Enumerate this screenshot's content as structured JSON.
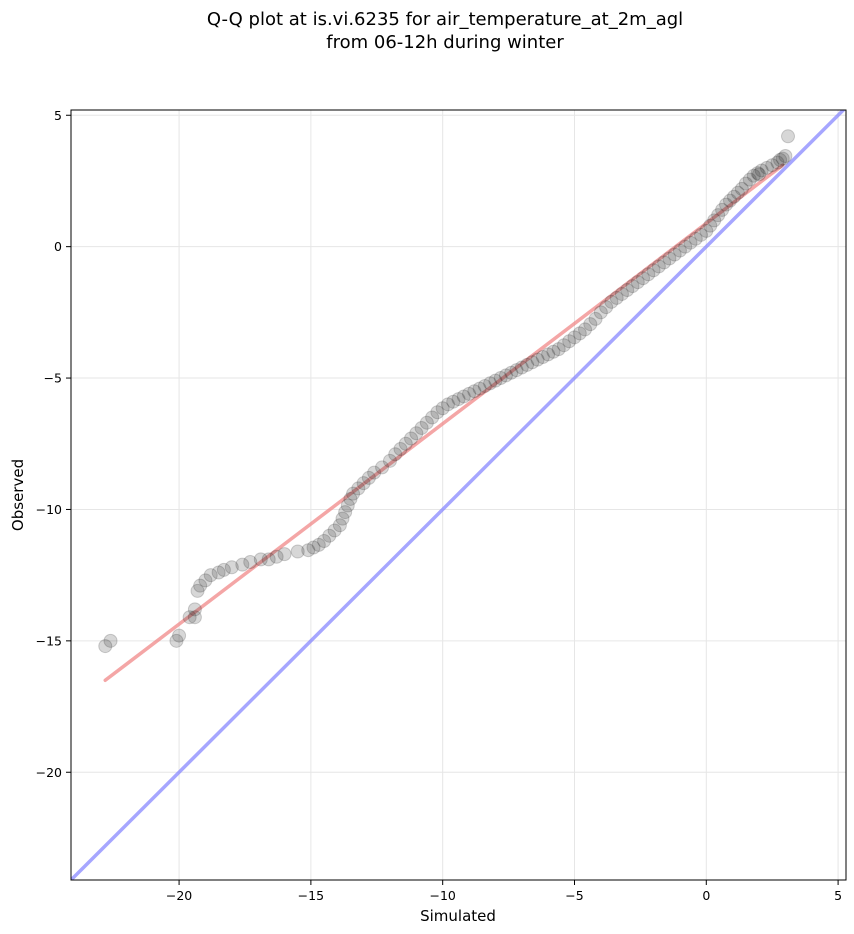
{
  "chart_data": {
    "type": "scatter",
    "title": [
      "Q-Q plot at is.vi.6235 for air_temperature_at_2m_agl",
      "from 06-12h during winter"
    ],
    "xlabel": "Simulated",
    "ylabel": "Observed",
    "xlim": [
      -24.1,
      5.3
    ],
    "ylim": [
      -24.1,
      5.2
    ],
    "x_ticks": [
      -20,
      -15,
      -10,
      -5,
      0,
      5
    ],
    "y_ticks": [
      -20,
      -15,
      -10,
      -5,
      0,
      5
    ],
    "x_tick_labels": [
      "−20",
      "−15",
      "−10",
      "−5",
      "0",
      "5"
    ],
    "y_tick_labels": [
      "−20",
      "−15",
      "−10",
      "−5",
      "0",
      "5"
    ],
    "grid": true,
    "colors": {
      "points": "#222222",
      "fit_line": "#f08080",
      "identity_line": "#8080ff"
    },
    "series": [
      {
        "type": "scatter",
        "points": [
          [
            -22.8,
            -15.2
          ],
          [
            -22.6,
            -15.0
          ],
          [
            -20.1,
            -15.0
          ],
          [
            -20.0,
            -14.8
          ],
          [
            -19.6,
            -14.1
          ],
          [
            -19.4,
            -14.1
          ],
          [
            -19.4,
            -13.8
          ],
          [
            -19.3,
            -13.1
          ],
          [
            -19.2,
            -12.9
          ],
          [
            -19.0,
            -12.7
          ],
          [
            -18.8,
            -12.5
          ],
          [
            -18.5,
            -12.4
          ],
          [
            -18.3,
            -12.3
          ],
          [
            -18.0,
            -12.2
          ],
          [
            -17.6,
            -12.1
          ],
          [
            -17.3,
            -12.0
          ],
          [
            -16.9,
            -11.9
          ],
          [
            -16.6,
            -11.9
          ],
          [
            -16.3,
            -11.8
          ],
          [
            -16.0,
            -11.7
          ],
          [
            -15.5,
            -11.6
          ],
          [
            -15.1,
            -11.55
          ],
          [
            -14.9,
            -11.45
          ],
          [
            -14.7,
            -11.35
          ],
          [
            -14.5,
            -11.2
          ],
          [
            -14.3,
            -11.0
          ],
          [
            -14.1,
            -10.8
          ],
          [
            -13.9,
            -10.6
          ],
          [
            -13.8,
            -10.35
          ],
          [
            -13.7,
            -10.1
          ],
          [
            -13.6,
            -9.85
          ],
          [
            -13.5,
            -9.6
          ],
          [
            -13.4,
            -9.4
          ],
          [
            -13.2,
            -9.2
          ],
          [
            -13.0,
            -9.0
          ],
          [
            -12.8,
            -8.8
          ],
          [
            -12.6,
            -8.6
          ],
          [
            -12.3,
            -8.4
          ],
          [
            -12.0,
            -8.15
          ],
          [
            -11.8,
            -7.9
          ],
          [
            -11.6,
            -7.7
          ],
          [
            -11.4,
            -7.5
          ],
          [
            -11.2,
            -7.3
          ],
          [
            -11.0,
            -7.1
          ],
          [
            -10.8,
            -6.9
          ],
          [
            -10.6,
            -6.7
          ],
          [
            -10.4,
            -6.5
          ],
          [
            -10.2,
            -6.3
          ],
          [
            -10.0,
            -6.15
          ],
          [
            -9.8,
            -6.0
          ],
          [
            -9.6,
            -5.9
          ],
          [
            -9.4,
            -5.8
          ],
          [
            -9.2,
            -5.7
          ],
          [
            -9.0,
            -5.6
          ],
          [
            -8.8,
            -5.5
          ],
          [
            -8.6,
            -5.4
          ],
          [
            -8.4,
            -5.3
          ],
          [
            -8.2,
            -5.2
          ],
          [
            -8.0,
            -5.1
          ],
          [
            -7.8,
            -5.0
          ],
          [
            -7.6,
            -4.9
          ],
          [
            -7.4,
            -4.8
          ],
          [
            -7.2,
            -4.7
          ],
          [
            -7.0,
            -4.6
          ],
          [
            -6.8,
            -4.5
          ],
          [
            -6.6,
            -4.4
          ],
          [
            -6.4,
            -4.3
          ],
          [
            -6.2,
            -4.2
          ],
          [
            -6.0,
            -4.1
          ],
          [
            -5.8,
            -4.0
          ],
          [
            -5.6,
            -3.9
          ],
          [
            -5.4,
            -3.75
          ],
          [
            -5.2,
            -3.6
          ],
          [
            -5.0,
            -3.45
          ],
          [
            -4.8,
            -3.3
          ],
          [
            -4.6,
            -3.15
          ],
          [
            -4.4,
            -2.95
          ],
          [
            -4.2,
            -2.75
          ],
          [
            -4.0,
            -2.5
          ],
          [
            -3.8,
            -2.3
          ],
          [
            -3.6,
            -2.1
          ],
          [
            -3.4,
            -1.95
          ],
          [
            -3.2,
            -1.8
          ],
          [
            -3.0,
            -1.65
          ],
          [
            -2.8,
            -1.5
          ],
          [
            -2.6,
            -1.35
          ],
          [
            -2.4,
            -1.2
          ],
          [
            -2.2,
            -1.05
          ],
          [
            -2.0,
            -0.9
          ],
          [
            -1.8,
            -0.75
          ],
          [
            -1.6,
            -0.6
          ],
          [
            -1.4,
            -0.45
          ],
          [
            -1.2,
            -0.3
          ],
          [
            -1.0,
            -0.15
          ],
          [
            -0.8,
            0.0
          ],
          [
            -0.6,
            0.15
          ],
          [
            -0.4,
            0.3
          ],
          [
            -0.2,
            0.45
          ],
          [
            0.0,
            0.6
          ],
          [
            0.15,
            0.8
          ],
          [
            0.3,
            1.0
          ],
          [
            0.45,
            1.2
          ],
          [
            0.6,
            1.4
          ],
          [
            0.75,
            1.6
          ],
          [
            0.9,
            1.75
          ],
          [
            1.05,
            1.9
          ],
          [
            1.2,
            2.05
          ],
          [
            1.35,
            2.2
          ],
          [
            1.5,
            2.4
          ],
          [
            1.65,
            2.55
          ],
          [
            1.8,
            2.7
          ],
          [
            1.95,
            2.8
          ],
          [
            2.1,
            2.9
          ],
          [
            2.3,
            3.0
          ],
          [
            2.5,
            3.1
          ],
          [
            2.7,
            3.2
          ],
          [
            2.9,
            3.35
          ],
          [
            3.0,
            3.45
          ],
          [
            2.8,
            3.3
          ],
          [
            2.0,
            2.75
          ],
          [
            3.1,
            4.2
          ]
        ]
      },
      {
        "type": "line",
        "role": "fit",
        "points": [
          [
            -22.8,
            -16.5
          ],
          [
            2.9,
            3.1
          ]
        ]
      },
      {
        "type": "line",
        "role": "identity",
        "points": [
          [
            -24.1,
            -24.1
          ],
          [
            5.3,
            5.3
          ]
        ]
      }
    ]
  }
}
